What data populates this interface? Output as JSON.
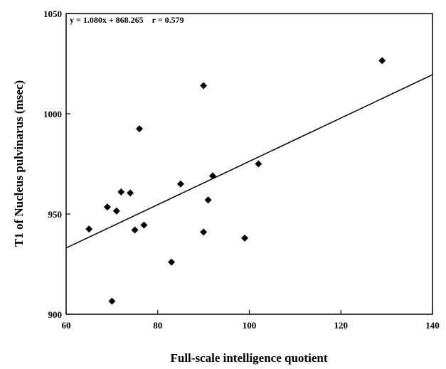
{
  "chart_data": {
    "type": "scatter",
    "title": "",
    "xlabel": "Full-scale intelligence quotient",
    "ylabel": "T1 of Nucleus pulvinarus (msec)",
    "xlim": [
      60,
      140
    ],
    "ylim": [
      900,
      1050
    ],
    "xticks": [
      60,
      80,
      100,
      120,
      140
    ],
    "yticks": [
      900,
      950,
      1000,
      1050
    ],
    "grid": false,
    "legend": "none",
    "annotation": "y = 1.080x + 868.265    r = 0.579",
    "regression": {
      "slope": 1.08,
      "intercept": 868.265
    },
    "points": [
      {
        "x": 65,
        "y": 942.5
      },
      {
        "x": 69,
        "y": 953.5
      },
      {
        "x": 70,
        "y": 906.5
      },
      {
        "x": 71,
        "y": 951.5
      },
      {
        "x": 72,
        "y": 961
      },
      {
        "x": 74,
        "y": 960.5
      },
      {
        "x": 75,
        "y": 942
      },
      {
        "x": 76,
        "y": 992.5
      },
      {
        "x": 77,
        "y": 944.5
      },
      {
        "x": 83,
        "y": 926
      },
      {
        "x": 85,
        "y": 965
      },
      {
        "x": 90,
        "y": 941
      },
      {
        "x": 90,
        "y": 1014
      },
      {
        "x": 91,
        "y": 957
      },
      {
        "x": 92,
        "y": 969
      },
      {
        "x": 99,
        "y": 938
      },
      {
        "x": 102,
        "y": 975
      },
      {
        "x": 129,
        "y": 1026.5
      }
    ],
    "marker": "diamond",
    "color": "#000000"
  }
}
